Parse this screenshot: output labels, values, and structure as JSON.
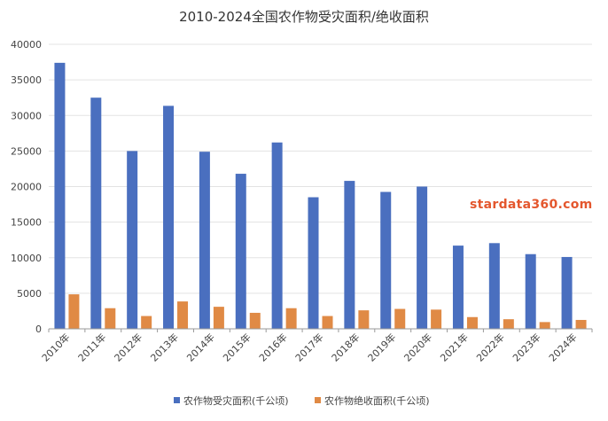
{
  "colors": {
    "series_1": "#4a6fbf",
    "series_2": "#e08a45",
    "grid": "#e3e3e3",
    "axis": "#999999"
  },
  "watermark": "stardata360.com",
  "chart_data": {
    "type": "bar",
    "title": "2010-2024全国农作物受灾面积/绝收面积",
    "xlabel": "",
    "ylabel": "",
    "ylim": [
      0,
      40000
    ],
    "yticks": [
      "0",
      "5000",
      "10000",
      "15000",
      "20000",
      "25000",
      "30000",
      "35000",
      "40000"
    ],
    "grid": true,
    "legend_position": "bottom",
    "categories": [
      "2010年",
      "2011年",
      "2012年",
      "2013年",
      "2014年",
      "2015年",
      "2016年",
      "2017年",
      "2018年",
      "2019年",
      "2020年",
      "2021年",
      "2022年",
      "2023年",
      "2024年"
    ],
    "series": [
      {
        "name": "农作物受灾面积(千公顷)",
        "values": [
          37400,
          32500,
          25000,
          31350,
          24900,
          21800,
          26200,
          18500,
          20800,
          19250,
          20000,
          11700,
          12050,
          10500,
          10100
        ]
      },
      {
        "name": "农作物绝收面积(千公顷)",
        "values": [
          4850,
          2900,
          1800,
          3850,
          3100,
          2250,
          2900,
          1800,
          2600,
          2800,
          2700,
          1650,
          1350,
          950,
          1250
        ]
      }
    ]
  }
}
